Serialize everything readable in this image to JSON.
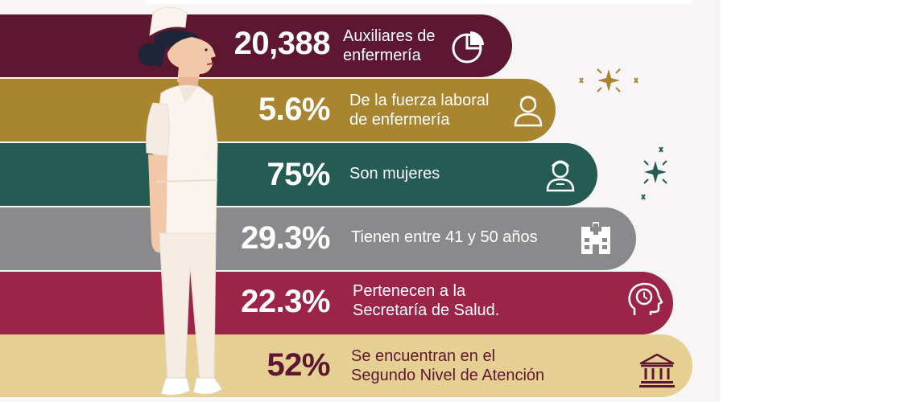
{
  "items": [
    {
      "stat": "20,388",
      "desc": "Auxiliares de\nenfermería",
      "color": "#5e1730",
      "icon": "pie-chart-icon"
    },
    {
      "stat": "5.6%",
      "desc": "De la fuerza laboral\nde enfermería",
      "color": "#a98530",
      "icon": "nurse-avatar-icon"
    },
    {
      "stat": "75%",
      "desc": "Son mujeres",
      "color": "#245b52",
      "icon": "woman-nurse-icon"
    },
    {
      "stat": "29.3%",
      "desc": "Tienen entre 41 y 50 años",
      "color": "#8a898b",
      "icon": "hospital-icon"
    },
    {
      "stat": "22.3%",
      "desc": "Pertenecen a la\nSecretaría de Salud.",
      "color": "#9b2448",
      "icon": "head-clock-icon"
    },
    {
      "stat": "52%",
      "desc": "Se encuentran en el\nSegundo Nivel de Atención",
      "color": "#e5cf93",
      "icon": "institution-building-icon",
      "text_color": "#5e1730"
    }
  ]
}
